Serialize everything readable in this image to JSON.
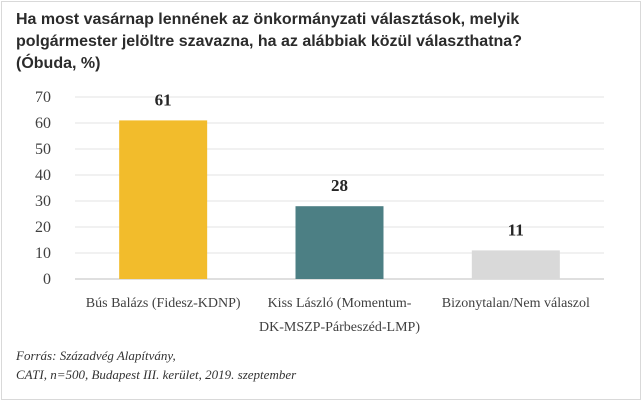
{
  "title_lines": [
    "Ha most vasárnap lennének az önkormányzati választások, melyik",
    "polgármester jelöltre szavazna, ha az alábbiak közül választhatna?",
    "(Óbuda, %)"
  ],
  "source_lines": [
    "Forrás: Századvég Alapítvány,",
    "CATI, n=500, Budapest III. kerület, 2019. szeptember"
  ],
  "chart_data": {
    "type": "bar",
    "categories": [
      [
        "Bús Balázs (Fidesz-KDNP)"
      ],
      [
        "Kiss László (Momentum-",
        "DK-MSZP-Párbeszéd-LMP)"
      ],
      [
        "Bizonytalan/Nem válaszol"
      ]
    ],
    "values": [
      61,
      28,
      11
    ],
    "data_labels": [
      "61",
      "28",
      "11"
    ],
    "colors": [
      "#f2bc2c",
      "#4c7f84",
      "#d9d9d9"
    ],
    "yticks": [
      0,
      10,
      20,
      30,
      40,
      50,
      60,
      70
    ],
    "ylim": [
      0,
      70
    ],
    "grid": true,
    "legend": "none"
  }
}
